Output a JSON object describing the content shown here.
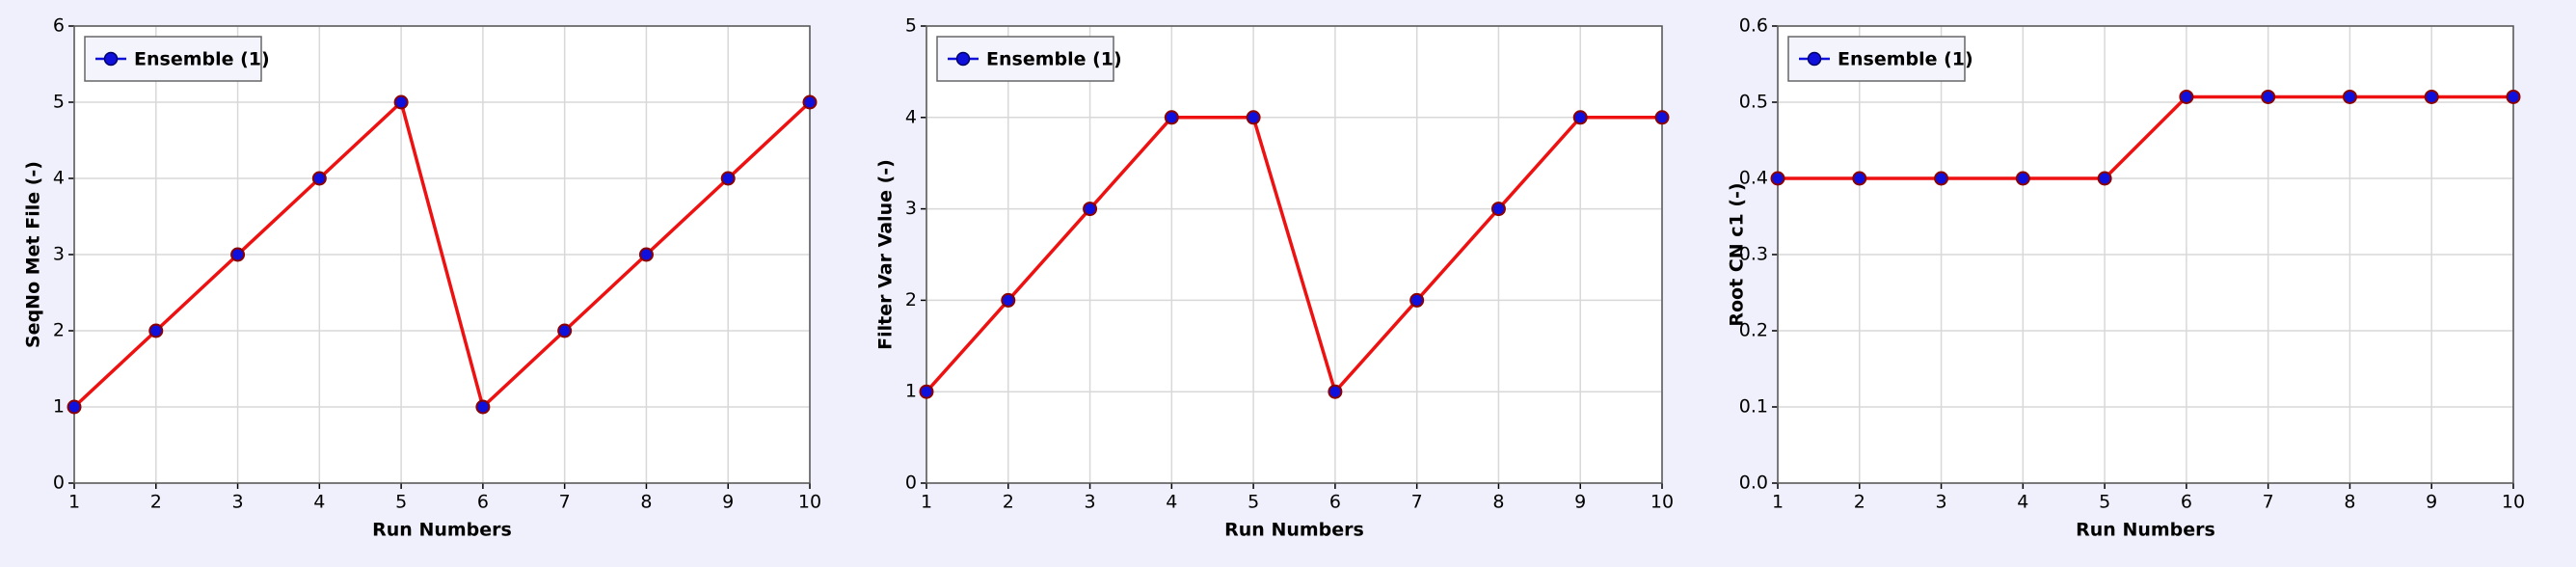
{
  "chart_data": [
    {
      "type": "line",
      "xlabel": "Run Numbers",
      "ylabel": "SeqNo Met File (-)",
      "x": [
        1,
        2,
        3,
        4,
        5,
        6,
        7,
        8,
        9,
        10
      ],
      "xlim": [
        1,
        10
      ],
      "xticks": [
        1,
        2,
        3,
        4,
        5,
        6,
        7,
        8,
        9,
        10
      ],
      "ylim": [
        0,
        6
      ],
      "yticks": [
        0,
        1,
        2,
        3,
        4,
        5,
        6
      ],
      "grid": true,
      "legend": "upper left",
      "series": [
        {
          "name": "Ensemble (1)",
          "color": "#ee1111",
          "marker_color": "#1010dd",
          "values": [
            1,
            2,
            3,
            4,
            5,
            1,
            2,
            3,
            4,
            5
          ]
        }
      ]
    },
    {
      "type": "line",
      "xlabel": "Run Numbers",
      "ylabel": "Filter Var Value (-)",
      "x": [
        1,
        2,
        3,
        4,
        5,
        6,
        7,
        8,
        9,
        10
      ],
      "xlim": [
        1,
        10
      ],
      "xticks": [
        1,
        2,
        3,
        4,
        5,
        6,
        7,
        8,
        9,
        10
      ],
      "ylim": [
        0,
        5
      ],
      "yticks": [
        0,
        1,
        2,
        3,
        4,
        5
      ],
      "grid": true,
      "legend": "upper left",
      "series": [
        {
          "name": "Ensemble (1)",
          "color": "#ee1111",
          "marker_color": "#1010dd",
          "values": [
            1,
            2,
            3,
            4,
            4,
            1,
            2,
            3,
            4,
            4
          ]
        }
      ]
    },
    {
      "type": "line",
      "xlabel": "Run Numbers",
      "ylabel": "Root CN c1 (-)",
      "x": [
        1,
        2,
        3,
        4,
        5,
        6,
        7,
        8,
        9,
        10
      ],
      "xlim": [
        1,
        10
      ],
      "xticks": [
        1,
        2,
        3,
        4,
        5,
        6,
        7,
        8,
        9,
        10
      ],
      "ylim": [
        0,
        0.6
      ],
      "yticks": [
        {
          "value": 0,
          "label": "0.0"
        },
        0.1,
        0.2,
        0.3,
        0.4,
        0.5,
        0.6
      ],
      "grid": true,
      "legend": "upper left",
      "series": [
        {
          "name": "Ensemble (1)",
          "color": "#ee1111",
          "marker_color": "#1010dd",
          "values": [
            0.4,
            0.4,
            0.4,
            0.4,
            0.4,
            0.507,
            0.507,
            0.507,
            0.507,
            0.507
          ]
        }
      ]
    }
  ]
}
